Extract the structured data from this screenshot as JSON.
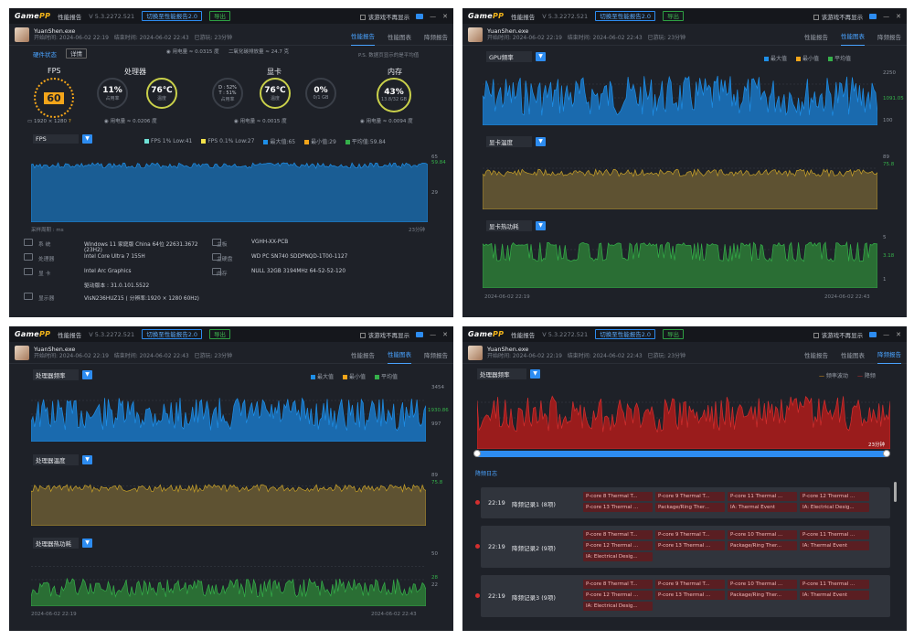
{
  "app": {
    "logo_a": "Game",
    "logo_b": "PP",
    "title": "性能报告",
    "version": "V 5.3.2272.521",
    "switch_btn": "切换至性能报告2.0",
    "export_btn": "导出",
    "no_show": "该游戏不再显示",
    "min": "—",
    "close": "✕"
  },
  "header": {
    "process": "YuanShen.exe",
    "start": "开始时间: 2024-06-02 22:19",
    "end": "结束时间: 2024-06-02 22:43",
    "elapsed": "已游玩: 23分钟"
  },
  "tabs": [
    "性能报告",
    "性能图表",
    "降频报告"
  ],
  "p1": {
    "hw_label": "硬件状态",
    "hw_btn": "详情",
    "note": "P.S. 数据页显示的是平均值",
    "fps": {
      "title": "FPS",
      "value": "60",
      "res": "1920 × 1280"
    },
    "cpu": {
      "title": "处理器",
      "usage": "11%",
      "usage_label": "占用率",
      "temp": "76℃",
      "temp_label": "温度",
      "power": "用电量 ≈ 0.0315 度",
      "co2": "二氧化碳排放量 ≈ 24.7 克"
    },
    "gpu": {
      "title": "显卡",
      "d": "D : 52%",
      "t": "T : 51%",
      "usage_label": "占用率",
      "temp": "76℃",
      "temp_label": "温度",
      "vram": "0%",
      "vram_sub": "0/1 GB",
      "power": "用电量 ≈ 0.0015 度"
    },
    "mem": {
      "title": "内存",
      "usage": "43%",
      "sub": "13.8/32 GB",
      "power": "用电量 ≈ 0.0094 度"
    },
    "power_cpu2": "用电量 ≈ 0.0206 度",
    "fps_select": "FPS",
    "legend": [
      "FPS 1% Low:41",
      "FPS 0.1% Low:27",
      "最大值:65",
      "最小值:29",
      "平均值:59.84"
    ],
    "ticks": {
      "max": "65",
      "avg": "59.84",
      "min": "29"
    },
    "foot_left": "采样周期 : ms",
    "foot_right": "23分钟",
    "sys": [
      {
        "k": "系 统",
        "v": "Windows 11 家庭版 China 64位 22631.3672 (23H2)",
        "k2": "主板",
        "v2": "VGHH-XX-PCB"
      },
      {
        "k": "处理器",
        "v": "Intel Core Ultra 7 155H",
        "k2": "主硬盘",
        "v2": "WD PC SN740 SDDPNQD-1T00-1127"
      },
      {
        "k": "显 卡",
        "v": "Intel Arc Graphics",
        "k2": "内存",
        "v2": "NULL 32GB 3194MHz 64-52-52-120"
      },
      {
        "k": "",
        "v": "驱动版本 : 31.0.101.5522",
        "k2": "",
        "v2": ""
      },
      {
        "k": "显示器",
        "v": "VisN236HUZ15 ( 分辨率:1920 × 1280 60Hz)",
        "k2": "",
        "v2": ""
      }
    ]
  },
  "p2": {
    "legend": [
      "最大值",
      "最小值",
      "平均值"
    ],
    "c1": {
      "label": "GPU频率",
      "max": "2250",
      "avg": "1091.05",
      "min": "100"
    },
    "c2": {
      "label": "显卡温度",
      "max": "89",
      "avg": "75.8"
    },
    "c3": {
      "label": "显卡热功耗",
      "max": "5",
      "avg": "3.18",
      "min": "1"
    },
    "t_start": "2024-06-02 22:19",
    "t_end": "2024-06-02 22:43"
  },
  "p3": {
    "legend": [
      "最大值",
      "最小值",
      "平均值"
    ],
    "c1": {
      "label": "处理器频率",
      "max": "3454",
      "avg": "1930.86",
      "min": "997"
    },
    "c2": {
      "label": "处理器温度",
      "max": "89",
      "avg": "75.8"
    },
    "c3": {
      "label": "处理器热功耗",
      "max": "50",
      "avg": "28",
      "min": "22"
    },
    "t_start": "2024-06-02 22:19",
    "t_end": "2024-06-02 22:43"
  },
  "p4": {
    "label": "处理器频率",
    "legend": [
      "频率波动",
      "降频"
    ],
    "foot": "23分钟",
    "log_title": "降频日志",
    "records": [
      {
        "time": "22:19",
        "name": "降频记录1 (8项)",
        "tags": [
          "P-core 8 Thermal T...",
          "P-core 9 Thermal T...",
          "P-core 11 Thermal ...",
          "P-core 12 Thermal ...",
          "P-core 13 Thermal ...",
          "Package/Ring Ther...",
          "IA: Thermal Event",
          "IA: Electrical Desig..."
        ]
      },
      {
        "time": "22:19",
        "name": "降频记录2 (9项)",
        "tags": [
          "P-core 8 Thermal T...",
          "P-core 9 Thermal T...",
          "P-core 10 Thermal ...",
          "P-core 11 Thermal ...",
          "P-core 12 Thermal ...",
          "P-core 13 Thermal ...",
          "Package/Ring Ther...",
          "IA: Thermal Event",
          "IA: Electrical Desig..."
        ]
      },
      {
        "time": "22:19",
        "name": "降频记录3 (9项)",
        "tags": [
          "P-core 8 Thermal T...",
          "P-core 9 Thermal T...",
          "P-core 10 Thermal ...",
          "P-core 11 Thermal ...",
          "P-core 12 Thermal ...",
          "P-core 13 Thermal ...",
          "Package/Ring Ther...",
          "IA: Thermal Event",
          "IA: Electrical Desig..."
        ]
      }
    ]
  },
  "colors": {
    "blue": "#1e8fe8",
    "yellow": "#c9a227",
    "green": "#35b04a",
    "red": "#c61f1f",
    "accent": "#2d8cf0"
  }
}
